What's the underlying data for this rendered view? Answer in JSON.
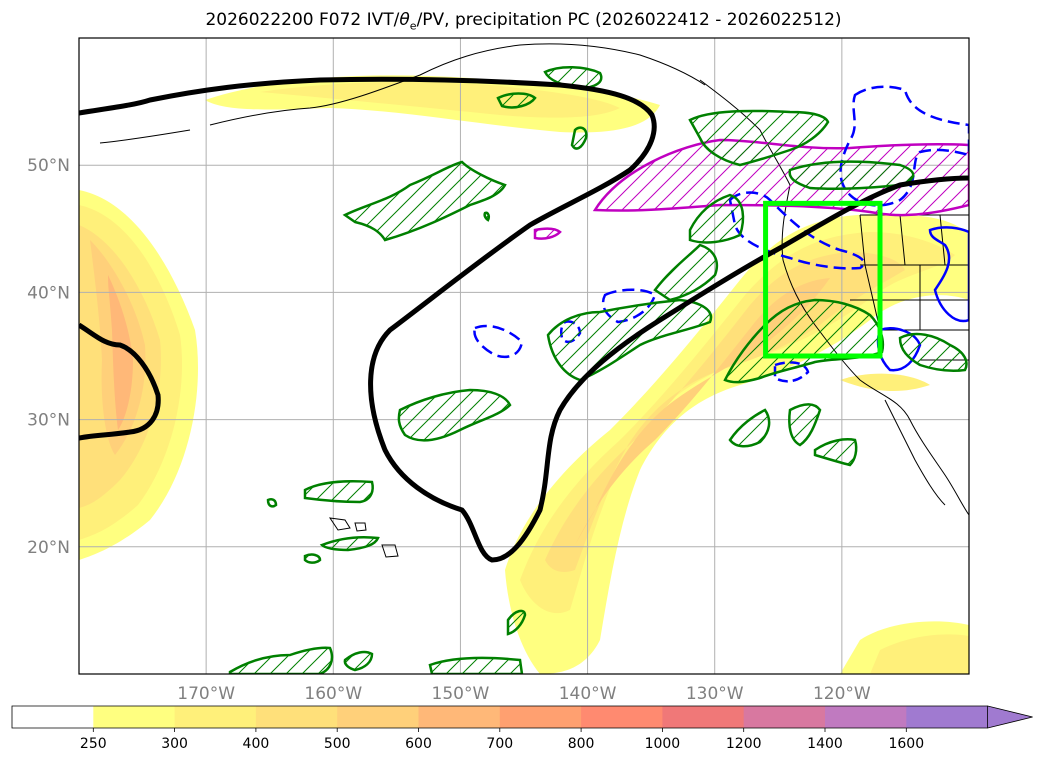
{
  "title": {
    "prefix": "2026022200 F072 IVT/",
    "theta": "θ",
    "theta_sub": "e",
    "suffix": "/PV, precipitation PC (2026022412 - 2026022512)"
  },
  "chart_data": {
    "type": "map",
    "title": "2026022200 F072 IVT/θe/PV, precipitation PC (2026022412 - 2026022512)",
    "lon_ticks": [
      "170°W",
      "160°W",
      "150°W",
      "140°W",
      "130°W",
      "120°W"
    ],
    "lat_ticks": [
      "50°N",
      "40°N",
      "30°N",
      "20°N"
    ],
    "lon_range": [
      -180,
      -110
    ],
    "lat_range": [
      10,
      60
    ],
    "lon_values": [
      -170,
      -160,
      -150,
      -140,
      -130,
      -120
    ],
    "lat_values": [
      50,
      40,
      30,
      20
    ],
    "grid": true,
    "ivt_levels": [
      "250",
      "300",
      "400",
      "500",
      "600",
      "700",
      "800",
      "1000",
      "1200",
      "1400",
      "1600"
    ],
    "ivt_colors": [
      "#ffffff",
      "#ffff80",
      "#fff07a",
      "#ffe07a",
      "#ffd07a",
      "#ffb878",
      "#ffa070",
      "#ff8a70",
      "#f07878",
      "#d878a0",
      "#c07ac0",
      "#a07ad0"
    ],
    "highlight_box": {
      "lon": [
        -126,
        -117
      ],
      "lat": [
        35,
        47
      ],
      "color": "#00ff00"
    },
    "colorbar_extend": "max",
    "contour_colors": {
      "pv": "#000000",
      "precip": "#008000",
      "theta_e_high": "#c000c0",
      "theta_e_low": "#0000ff"
    }
  }
}
